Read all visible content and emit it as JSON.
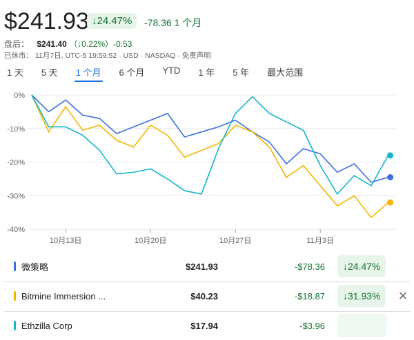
{
  "header": {
    "price": "$241.93",
    "pct_change": "↓24.47%",
    "abs_change": "-78.36",
    "period": "1 个月",
    "after_hours_label": "盘后：",
    "after_hours_price": "$241.40",
    "after_hours_change": "（↓0.22%）-0.53",
    "status": "已休市： 11月7日, UTC-5 19:59:52 · USD · NASDAQ · 免责声明"
  },
  "tabs": [
    {
      "label": "1 天"
    },
    {
      "label": "5 天"
    },
    {
      "label": "1 个月",
      "active": true
    },
    {
      "label": "6 个月"
    },
    {
      "label": "YTD"
    },
    {
      "label": "1 年"
    },
    {
      "label": "5 年"
    },
    {
      "label": "最大范围"
    }
  ],
  "colors": {
    "mstr": "#4169e1",
    "bmnr": "#f4b400",
    "eth": "#12b5cb"
  },
  "chart_data": {
    "type": "line",
    "ylim": [
      -40,
      0
    ],
    "yticks": [
      "0%",
      "-10%",
      "-20%",
      "-30%",
      "-40%"
    ],
    "ytick_values": [
      0,
      -10,
      -20,
      -30,
      -40
    ],
    "xticks": [
      "10月13日",
      "10月20日",
      "10月27日",
      "11月3日"
    ],
    "xtick_index": [
      2,
      7,
      12,
      17
    ],
    "series": [
      {
        "name": "微策略",
        "color": "#3b6fe0",
        "values": [
          0,
          -5,
          -1.5,
          -6,
          -7,
          -11.5,
          -9.5,
          -7.5,
          -5.5,
          -12.5,
          -11,
          -9.5,
          -7.5,
          -11,
          -14,
          -20.5,
          -16,
          -17.5,
          -23,
          -20.5,
          -26,
          -24.5
        ]
      },
      {
        "name": "Bitmine Immersion",
        "color": "#f4b400",
        "values": [
          0,
          -11,
          -3.5,
          -10.5,
          -9,
          -13.5,
          -15.5,
          -9,
          -12,
          -18.5,
          -16.5,
          -14.5,
          -9,
          -11,
          -15.5,
          -24.5,
          -21,
          -27,
          -33,
          -30,
          -36.5,
          -32
        ]
      },
      {
        "name": "Ethzilla Corp",
        "color": "#12b5cb",
        "values": [
          0,
          -9.5,
          -9.5,
          -12,
          -16.5,
          -23.5,
          -23,
          -22,
          -25,
          -28.5,
          -29.5,
          -16,
          -5.5,
          -0.5,
          -5.5,
          -8,
          -10.5,
          -21,
          -29.5,
          -24,
          -27,
          -18
        ]
      }
    ]
  },
  "comparisons": [
    {
      "name": "微策略",
      "price": "$241.93",
      "change": "-$78.36",
      "pct": "↓24.47%"
    },
    {
      "name": "Bitmine Immersion ...",
      "price": "$40.23",
      "change": "-$18.87",
      "pct": "↓31.93%"
    },
    {
      "name": "Ethzilla Corp",
      "price": "$17.94",
      "change": "-$3.96",
      "pct": ""
    }
  ],
  "close_icon": "×"
}
